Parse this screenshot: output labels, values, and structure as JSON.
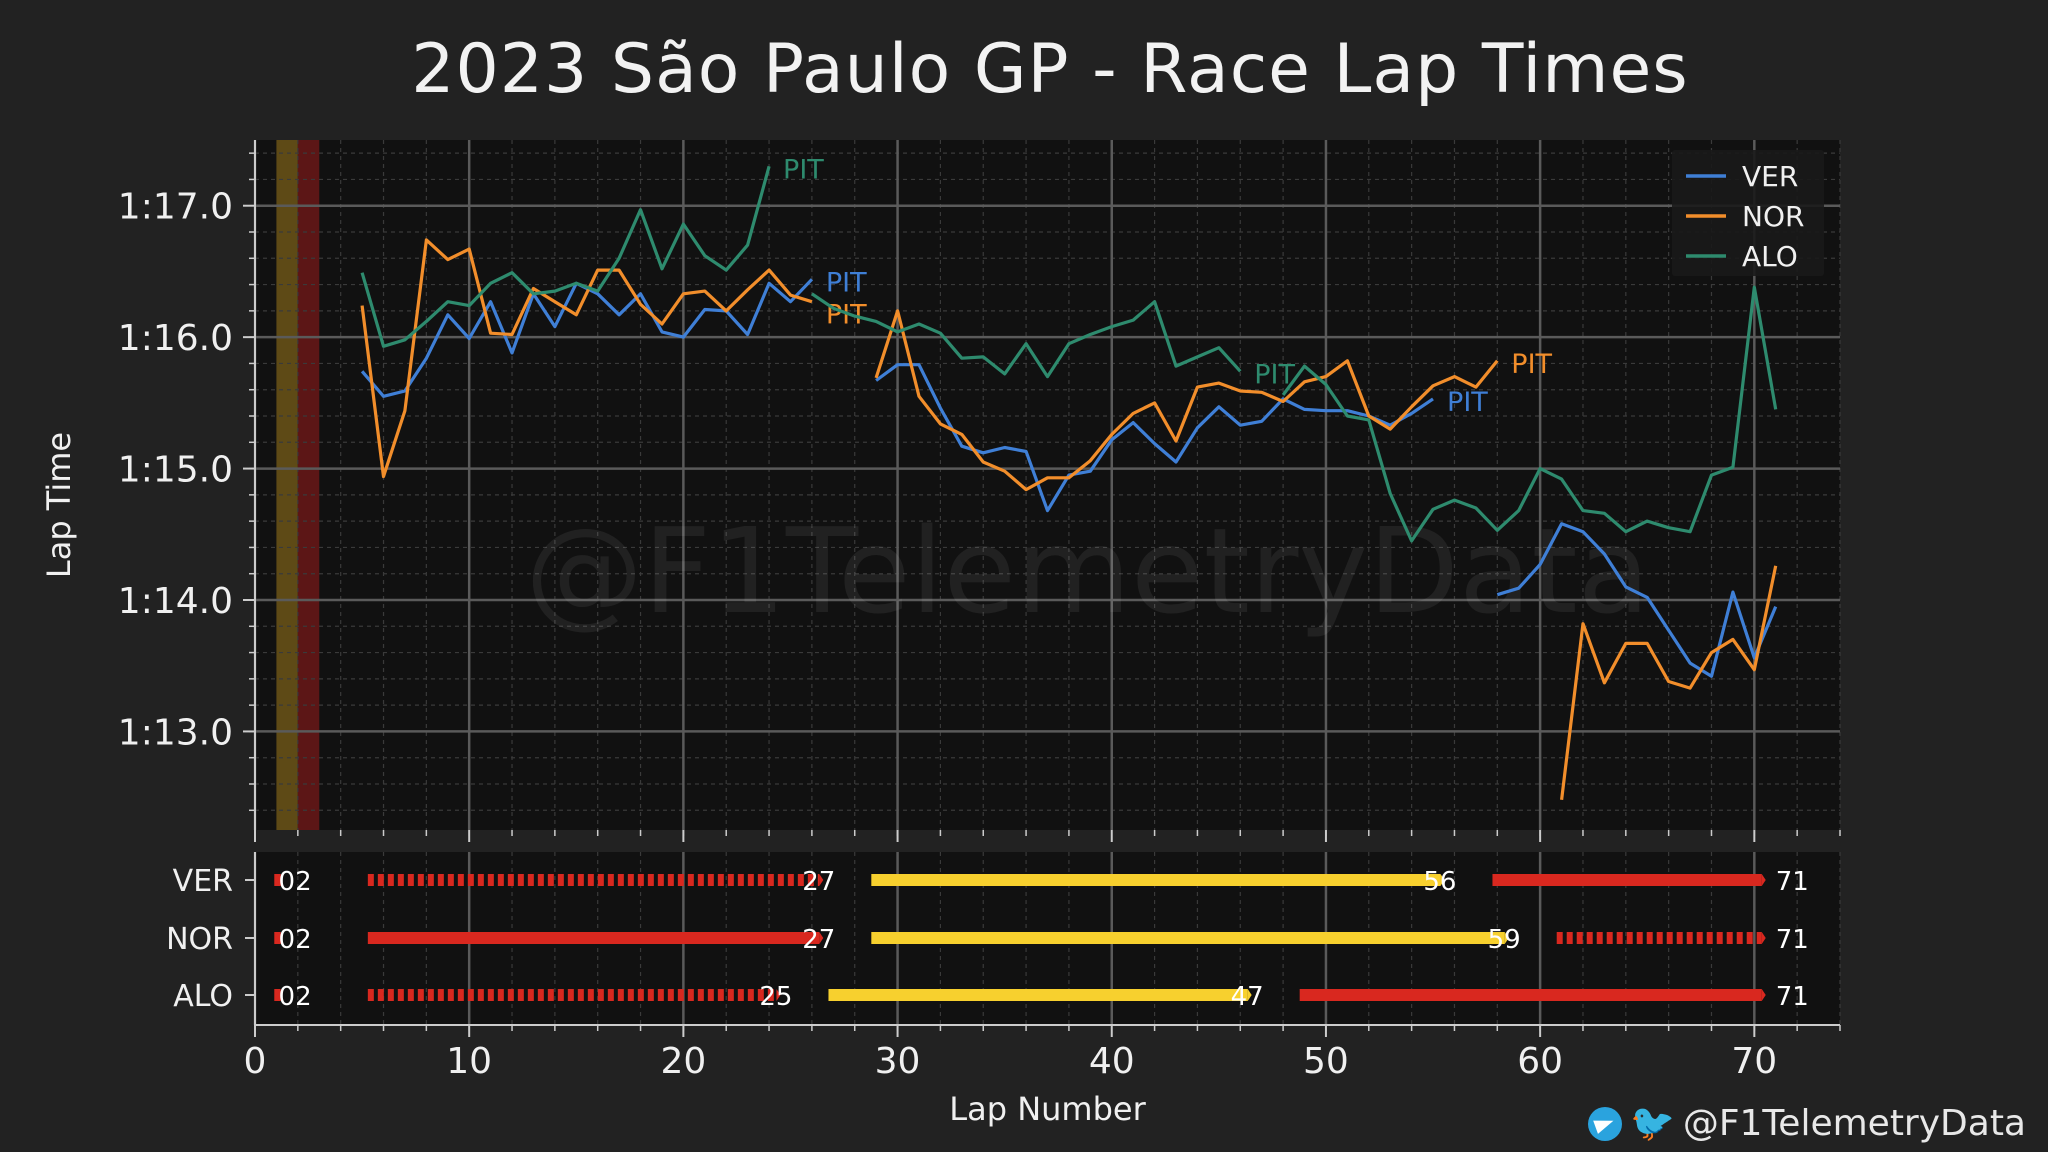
{
  "chart_data": {
    "type": "line",
    "title": "2023 São Paulo GP - Race Lap Times",
    "xlabel": "Lap Number",
    "ylabel": "Lap Time",
    "xlim": [
      0,
      74
    ],
    "ylim": [
      72.25,
      77.5
    ],
    "x_ticks": [
      0,
      10,
      20,
      30,
      40,
      50,
      60,
      70
    ],
    "y_ticks": [
      73,
      74,
      75,
      76,
      77
    ],
    "y_tick_labels": [
      "1:13.0",
      "1:14.0",
      "1:15.0",
      "1:16.0",
      "1:17.0"
    ],
    "grid": true,
    "legend_position": "top-right",
    "watermark": "@F1TelemetryData",
    "flag_periods": [
      {
        "start": 1,
        "end": 2,
        "color": "#5e4a16"
      },
      {
        "start": 2,
        "end": 3,
        "color": "#5c1616"
      }
    ],
    "series": [
      {
        "name": "VER",
        "color": "#3f7fd6",
        "segments": [
          {
            "x": [
              5,
              6,
              7,
              8,
              9,
              10,
              11,
              12,
              13,
              14,
              15,
              16,
              17,
              18,
              19,
              20,
              21,
              22,
              23,
              24,
              25,
              26
            ],
            "y": [
              75.74,
              75.55,
              75.59,
              75.84,
              76.17,
              75.99,
              76.27,
              75.88,
              76.33,
              76.08,
              76.41,
              76.33,
              76.17,
              76.33,
              76.04,
              76.0,
              76.21,
              76.2,
              76.02,
              76.41,
              76.27,
              76.44
            ]
          },
          {
            "x": [
              29,
              30,
              31,
              32,
              33,
              34,
              35,
              36,
              37,
              38,
              39,
              40,
              41,
              42,
              43,
              44,
              45,
              46,
              47,
              48,
              49,
              50,
              51,
              52,
              53,
              54,
              55
            ],
            "y": [
              75.67,
              75.79,
              75.79,
              75.46,
              75.17,
              75.12,
              75.16,
              75.13,
              74.68,
              74.95,
              74.98,
              75.22,
              75.35,
              75.19,
              75.05,
              75.31,
              75.47,
              75.33,
              75.36,
              75.53,
              75.45,
              75.44,
              75.44,
              75.4,
              75.33,
              75.42,
              75.53
            ]
          },
          {
            "x": [
              58,
              59,
              60,
              61,
              62,
              63,
              64,
              65,
              66,
              67,
              68,
              69,
              70,
              71
            ],
            "y": [
              74.04,
              74.09,
              74.27,
              74.58,
              74.52,
              74.35,
              74.1,
              74.02,
              73.77,
              73.52,
              73.42,
              74.06,
              73.56,
              73.95
            ]
          }
        ],
        "pit_laps": [
          26,
          55
        ]
      },
      {
        "name": "NOR",
        "color": "#f28e2b",
        "segments": [
          {
            "x": [
              5,
              6,
              7,
              8,
              9,
              10,
              11,
              12,
              13,
              14,
              15,
              16,
              17,
              18,
              19,
              20,
              21,
              22,
              23,
              24,
              25,
              26
            ],
            "y": [
              76.24,
              74.94,
              75.44,
              76.74,
              76.59,
              76.67,
              76.03,
              76.02,
              76.37,
              76.27,
              76.17,
              76.51,
              76.51,
              76.25,
              76.1,
              76.33,
              76.35,
              76.2,
              76.36,
              76.51,
              76.32,
              76.27
            ]
          },
          {
            "x": [
              29,
              30,
              31,
              32,
              33,
              34,
              35,
              36,
              37,
              38,
              39,
              40,
              41,
              42,
              43,
              44,
              45,
              46,
              47,
              48,
              49,
              50,
              51,
              52,
              53,
              54,
              55,
              56,
              57,
              58
            ],
            "y": [
              75.69,
              76.2,
              75.55,
              75.34,
              75.26,
              75.05,
              74.98,
              74.84,
              74.93,
              74.93,
              75.06,
              75.26,
              75.42,
              75.5,
              75.21,
              75.62,
              75.65,
              75.59,
              75.58,
              75.51,
              75.66,
              75.7,
              75.82,
              75.4,
              75.3,
              75.47,
              75.63,
              75.7,
              75.62,
              75.82
            ]
          },
          {
            "x": [
              61,
              62,
              63,
              64,
              65,
              66,
              67,
              68,
              69,
              70,
              71
            ],
            "y": [
              72.48,
              73.82,
              73.37,
              73.67,
              73.67,
              73.38,
              73.33,
              73.6,
              73.7,
              73.47,
              74.26
            ]
          }
        ],
        "pit_laps": [
          26,
          58
        ]
      },
      {
        "name": "ALO",
        "color": "#2e8b6e",
        "segments": [
          {
            "x": [
              5,
              6,
              7,
              8,
              9,
              10,
              11,
              12,
              13,
              14,
              15,
              16,
              17,
              18,
              19,
              20,
              21,
              22,
              23,
              24
            ],
            "y": [
              76.49,
              75.93,
              75.98,
              76.12,
              76.27,
              76.24,
              76.41,
              76.49,
              76.33,
              76.35,
              76.41,
              76.35,
              76.6,
              76.97,
              76.52,
              76.86,
              76.62,
              76.51,
              76.7,
              77.3
            ]
          },
          {
            "x": [
              26,
              27,
              28,
              29,
              30,
              31,
              32,
              33,
              34,
              35,
              36,
              37,
              38,
              39,
              40,
              41,
              42,
              43,
              44,
              45,
              46
            ],
            "y": [
              76.33,
              76.22,
              76.16,
              76.12,
              76.04,
              76.1,
              76.03,
              75.84,
              75.85,
              75.72,
              75.95,
              75.7,
              75.95,
              76.02,
              76.08,
              76.13,
              76.27,
              75.78,
              75.85,
              75.92,
              75.74
            ]
          },
          {
            "x": [
              48,
              49,
              50,
              51,
              52,
              53,
              54,
              55,
              56,
              57,
              58,
              59,
              60,
              61,
              62,
              63,
              64,
              65,
              66,
              67,
              68,
              69,
              70,
              71
            ],
            "y": [
              75.56,
              75.78,
              75.64,
              75.4,
              75.37,
              74.81,
              74.45,
              74.69,
              74.76,
              74.7,
              74.53,
              74.68,
              75.0,
              74.92,
              74.68,
              74.66,
              74.52,
              74.6,
              74.55,
              74.52,
              74.95,
              75.01,
              76.38,
              75.45
            ]
          }
        ],
        "pit_laps": [
          24,
          46
        ]
      }
    ],
    "stints": {
      "ylabels": [
        "VER",
        "NOR",
        "ALO"
      ],
      "rows": [
        {
          "driver": "VER",
          "stints": [
            {
              "start": 2,
              "end": 27,
              "compound": "SOFT",
              "pattern": "dashed"
            },
            {
              "start": 27,
              "end": 56,
              "compound": "MEDIUM",
              "pattern": "solid"
            },
            {
              "start": 56,
              "end": 71,
              "compound": "SOFT",
              "pattern": "solid"
            }
          ],
          "labels": [
            "02",
            "27",
            "56",
            "71"
          ]
        },
        {
          "driver": "NOR",
          "stints": [
            {
              "start": 2,
              "end": 27,
              "compound": "SOFT",
              "pattern": "solid"
            },
            {
              "start": 27,
              "end": 59,
              "compound": "MEDIUM",
              "pattern": "solid"
            },
            {
              "start": 59,
              "end": 71,
              "compound": "SOFT",
              "pattern": "dashed"
            }
          ],
          "labels": [
            "02",
            "27",
            "59",
            "71"
          ]
        },
        {
          "driver": "ALO",
          "stints": [
            {
              "start": 2,
              "end": 25,
              "compound": "SOFT",
              "pattern": "dashed"
            },
            {
              "start": 25,
              "end": 47,
              "compound": "MEDIUM",
              "pattern": "solid"
            },
            {
              "start": 47,
              "end": 71,
              "compound": "SOFT",
              "pattern": "solid"
            }
          ],
          "labels": [
            "02",
            "25",
            "47",
            "71"
          ]
        }
      ],
      "compound_colors": {
        "SOFT": "#d9281f",
        "MEDIUM": "#f7d02e"
      }
    },
    "pit_label": "PIT"
  },
  "credit": {
    "handle": "@F1TelemetryData",
    "icons": [
      "telegram-icon",
      "twitter-icon"
    ]
  }
}
